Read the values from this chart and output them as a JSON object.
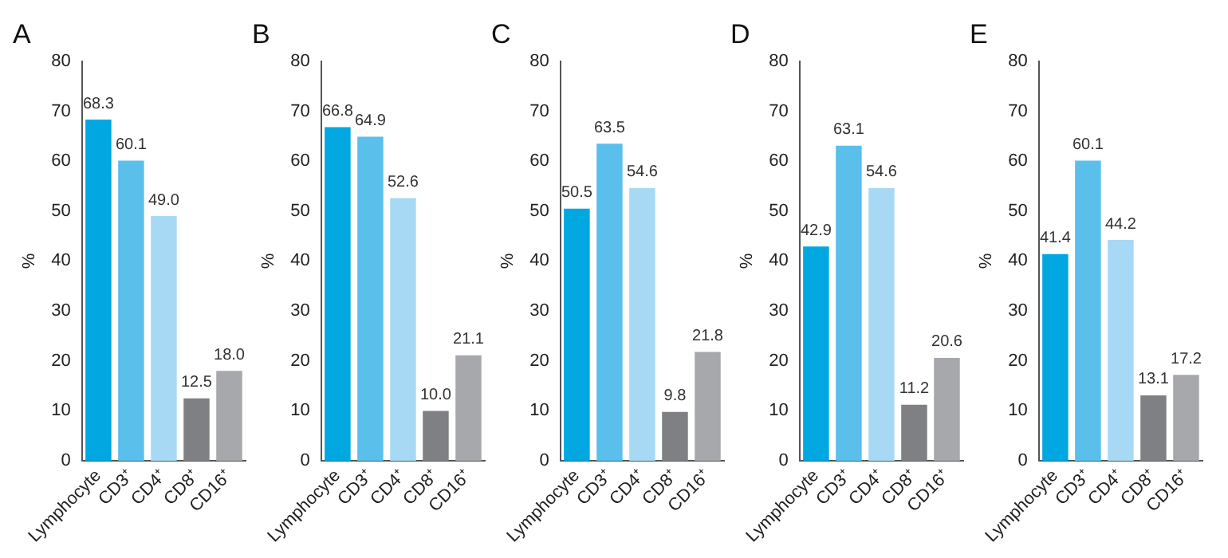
{
  "chart_data": [
    {
      "type": "bar",
      "title": "A",
      "ylabel": "%",
      "categories": [
        "Lymphocyte",
        "CD3⁺",
        "CD4⁺",
        "CD8⁺",
        "CD16⁺"
      ],
      "values": [
        68.3,
        60.1,
        49.0,
        12.5,
        18.0
      ],
      "value_labels": [
        "68.3",
        "60.1",
        "49.0",
        "12.5",
        "18.0"
      ],
      "colors": [
        "#00a7e1",
        "#5bbfec",
        "#a7d9f5",
        "#7e8084",
        "#a6a8ab"
      ],
      "ylim": [
        0,
        80
      ],
      "yticks": [
        0,
        10,
        20,
        30,
        40,
        50,
        60,
        70,
        80
      ],
      "grid": false,
      "legend": false
    },
    {
      "type": "bar",
      "title": "B",
      "ylabel": "%",
      "categories": [
        "Lymphocyte",
        "CD3⁺",
        "CD4⁺",
        "CD8⁺",
        "CD16⁺"
      ],
      "values": [
        66.8,
        64.9,
        52.6,
        10.0,
        21.1
      ],
      "value_labels": [
        "66.8",
        "64.9",
        "52.6",
        "10.0",
        "21.1"
      ],
      "colors": [
        "#00a7e1",
        "#5bbfec",
        "#a7d9f5",
        "#7e8084",
        "#a6a8ab"
      ],
      "ylim": [
        0,
        80
      ],
      "yticks": [
        0,
        10,
        20,
        30,
        40,
        50,
        60,
        70,
        80
      ],
      "grid": false,
      "legend": false
    },
    {
      "type": "bar",
      "title": "C",
      "ylabel": "%",
      "categories": [
        "Lymphocyte",
        "CD3⁺",
        "CD4⁺",
        "CD8⁺",
        "CD16⁺"
      ],
      "values": [
        50.5,
        63.5,
        54.6,
        9.8,
        21.8
      ],
      "value_labels": [
        "50.5",
        "63.5",
        "54.6",
        "9.8",
        "21.8"
      ],
      "colors": [
        "#00a7e1",
        "#5bbfec",
        "#a7d9f5",
        "#7e8084",
        "#a6a8ab"
      ],
      "ylim": [
        0,
        80
      ],
      "yticks": [
        0,
        10,
        20,
        30,
        40,
        50,
        60,
        70,
        80
      ],
      "grid": false,
      "legend": false
    },
    {
      "type": "bar",
      "title": "D",
      "ylabel": "%",
      "categories": [
        "Lymphocyte",
        "CD3⁺",
        "CD4⁺",
        "CD8⁺",
        "CD16⁺"
      ],
      "values": [
        42.9,
        63.1,
        54.6,
        11.2,
        20.6
      ],
      "value_labels": [
        "42.9",
        "63.1",
        "54.6",
        "11.2",
        "20.6"
      ],
      "colors": [
        "#00a7e1",
        "#5bbfec",
        "#a7d9f5",
        "#7e8084",
        "#a6a8ab"
      ],
      "ylim": [
        0,
        80
      ],
      "yticks": [
        0,
        10,
        20,
        30,
        40,
        50,
        60,
        70,
        80
      ],
      "grid": false,
      "legend": false
    },
    {
      "type": "bar",
      "title": "E",
      "ylabel": "%",
      "categories": [
        "Lymphocyte",
        "CD3⁺",
        "CD4⁺",
        "CD8⁺",
        "CD16⁺"
      ],
      "values": [
        41.4,
        60.1,
        44.2,
        13.1,
        17.2
      ],
      "value_labels": [
        "41.4",
        "60.1",
        "44.2",
        "13.1",
        "17.2"
      ],
      "colors": [
        "#00a7e1",
        "#5bbfec",
        "#a7d9f5",
        "#7e8084",
        "#a6a8ab"
      ],
      "ylim": [
        0,
        80
      ],
      "yticks": [
        0,
        10,
        20,
        30,
        40,
        50,
        60,
        70,
        80
      ],
      "grid": false,
      "legend": false
    }
  ]
}
